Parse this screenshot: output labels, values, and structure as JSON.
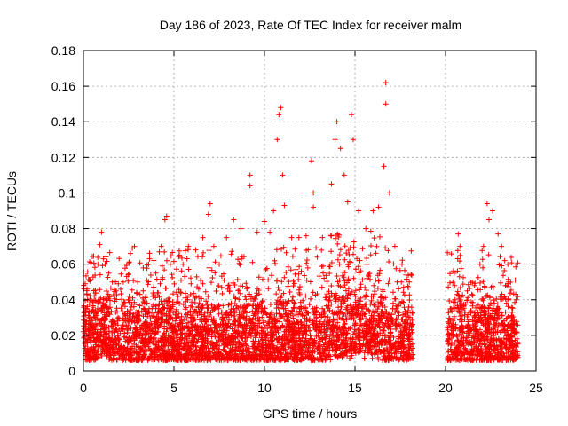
{
  "chart_data": {
    "type": "scatter",
    "title": "Day 186 of 2023, Rate Of TEC Index for receiver malm",
    "xlabel": "GPS time / hours",
    "ylabel": "ROTI / TECUs",
    "xlim": [
      0,
      25
    ],
    "ylim": [
      0,
      0.18
    ],
    "x_ticks": [
      0,
      5,
      10,
      15,
      20,
      25
    ],
    "x_tick_labels": [
      "0",
      "5",
      "10",
      "15",
      "20",
      "25"
    ],
    "y_ticks": [
      0,
      0.02,
      0.04,
      0.06,
      0.08,
      0.1,
      0.12,
      0.14,
      0.16,
      0.18
    ],
    "y_tick_labels": [
      "0",
      "0.02",
      "0.04",
      "0.06",
      "0.08",
      "0.1",
      "0.12",
      "0.14",
      "0.16",
      "0.18"
    ],
    "grid": true,
    "marker": "+",
    "color": "#ff0000",
    "data_gap_hours": [
      18.2,
      20.1
    ],
    "series": [
      {
        "points": [
          [
            0.1,
            0.049
          ],
          [
            0.2,
            0.046
          ],
          [
            0.3,
            0.03
          ],
          [
            0.5,
            0.025
          ],
          [
            0.8,
            0.06
          ],
          [
            0.9,
            0.071
          ],
          [
            1.0,
            0.078
          ],
          [
            1.1,
            0.063
          ],
          [
            1.2,
            0.06
          ],
          [
            1.4,
            0.055
          ],
          [
            1.6,
            0.05
          ],
          [
            1.8,
            0.045
          ],
          [
            2.2,
            0.05
          ],
          [
            2.6,
            0.066
          ],
          [
            2.7,
            0.069
          ],
          [
            3.0,
            0.05
          ],
          [
            3.3,
            0.045
          ],
          [
            3.6,
            0.06
          ],
          [
            4.0,
            0.055
          ],
          [
            4.3,
            0.07
          ],
          [
            4.5,
            0.085
          ],
          [
            4.6,
            0.087
          ],
          [
            4.8,
            0.06
          ],
          [
            5.3,
            0.065
          ],
          [
            5.5,
            0.06
          ],
          [
            5.8,
            0.07
          ],
          [
            6.2,
            0.068
          ],
          [
            6.6,
            0.075
          ],
          [
            6.9,
            0.088
          ],
          [
            7.0,
            0.094
          ],
          [
            7.2,
            0.07
          ],
          [
            7.5,
            0.06
          ],
          [
            7.9,
            0.075
          ],
          [
            8.3,
            0.085
          ],
          [
            8.7,
            0.08
          ],
          [
            9.2,
            0.11
          ],
          [
            9.2,
            0.104
          ],
          [
            9.6,
            0.078
          ],
          [
            10.0,
            0.084
          ],
          [
            10.3,
            0.078
          ],
          [
            10.5,
            0.09
          ],
          [
            10.7,
            0.13
          ],
          [
            10.8,
            0.144
          ],
          [
            10.9,
            0.148
          ],
          [
            11.0,
            0.11
          ],
          [
            11.1,
            0.093
          ],
          [
            11.5,
            0.075
          ],
          [
            11.9,
            0.075
          ],
          [
            12.3,
            0.076
          ],
          [
            12.6,
            0.118
          ],
          [
            12.7,
            0.1
          ],
          [
            12.7,
            0.092
          ],
          [
            13.2,
            0.075
          ],
          [
            13.7,
            0.105
          ],
          [
            13.9,
            0.13
          ],
          [
            14.0,
            0.14
          ],
          [
            14.2,
            0.125
          ],
          [
            14.4,
            0.11
          ],
          [
            14.6,
            0.095
          ],
          [
            14.8,
            0.144
          ],
          [
            14.9,
            0.13
          ],
          [
            15.2,
            0.09
          ],
          [
            15.6,
            0.08
          ],
          [
            16.0,
            0.09
          ],
          [
            16.3,
            0.092
          ],
          [
            16.6,
            0.115
          ],
          [
            16.7,
            0.15
          ],
          [
            16.7,
            0.162
          ],
          [
            16.9,
            0.1
          ],
          [
            17.2,
            0.07
          ],
          [
            17.6,
            0.06
          ],
          [
            18.0,
            0.05
          ],
          [
            20.3,
            0.035
          ],
          [
            20.5,
            0.048
          ],
          [
            20.7,
            0.077
          ],
          [
            20.8,
            0.07
          ],
          [
            21.2,
            0.045
          ],
          [
            21.6,
            0.048
          ],
          [
            21.9,
            0.06
          ],
          [
            22.1,
            0.07
          ],
          [
            22.3,
            0.094
          ],
          [
            22.4,
            0.085
          ],
          [
            22.6,
            0.09
          ],
          [
            22.9,
            0.077
          ],
          [
            23.1,
            0.07
          ],
          [
            23.5,
            0.04
          ],
          [
            23.9,
            0.04
          ]
        ]
      }
    ],
    "baseline_band": {
      "description_free": "",
      "x_start": 0,
      "x_end": 24,
      "gap": [
        18.2,
        20.1
      ]
    }
  }
}
